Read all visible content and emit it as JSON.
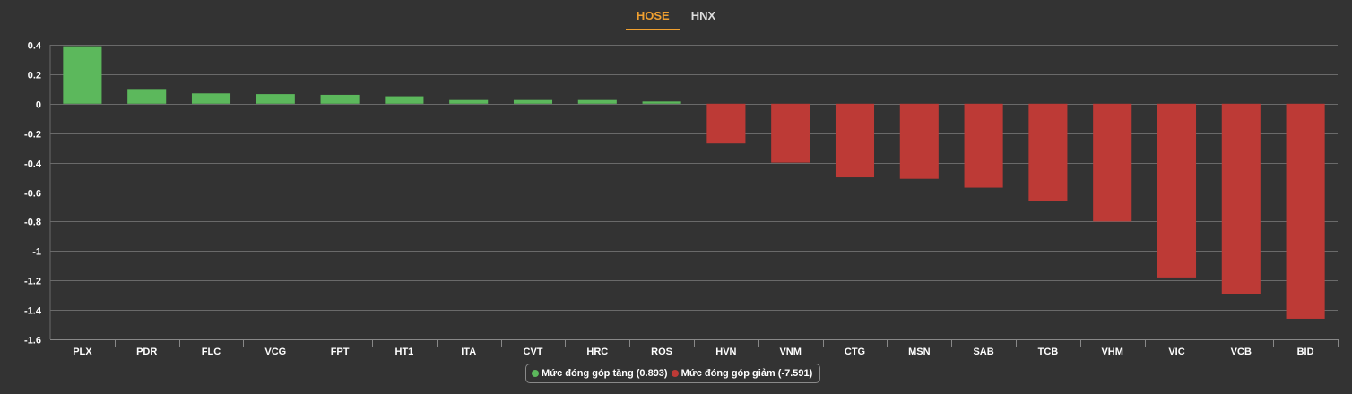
{
  "tabs": [
    {
      "label": "HOSE",
      "active": true
    },
    {
      "label": "HNX",
      "active": false
    }
  ],
  "legend": {
    "positive_label": "Mức đóng góp tăng",
    "positive_value": "(0.893)",
    "negative_label": "Mức đóng góp giảm",
    "negative_value": "(-7.591)"
  },
  "colors": {
    "positive": "#5cb85c",
    "negative": "#bd3a36",
    "background": "#333333",
    "grid": "#6a6a6a",
    "accent": "#f0a030"
  },
  "chart_data": {
    "type": "bar",
    "categories": [
      "PLX",
      "PDR",
      "FLC",
      "VCG",
      "FPT",
      "HT1",
      "ITA",
      "CVT",
      "HRC",
      "ROS",
      "HVN",
      "VNM",
      "CTG",
      "MSN",
      "SAB",
      "TCB",
      "VHM",
      "VIC",
      "VCB",
      "BID"
    ],
    "values": [
      0.39,
      0.1,
      0.07,
      0.065,
      0.06,
      0.05,
      0.025,
      0.025,
      0.025,
      0.015,
      -0.27,
      -0.4,
      -0.5,
      -0.51,
      -0.57,
      -0.66,
      -0.8,
      -1.18,
      -1.29,
      -1.46
    ],
    "series": [
      {
        "name": "Mức đóng góp tăng",
        "color": "#5cb85c"
      },
      {
        "name": "Mức đóng góp giảm",
        "color": "#bd3a36"
      }
    ],
    "yticks": [
      "0.4",
      "0.2",
      "0",
      "-0.2",
      "-0.4",
      "-0.6",
      "-0.8",
      "-1",
      "-1.2",
      "-1.4",
      "-1.6"
    ],
    "ylim": [
      -1.6,
      0.4
    ],
    "grid": true,
    "legend_position": "bottom-center",
    "title": "",
    "xlabel": "",
    "ylabel": ""
  }
}
